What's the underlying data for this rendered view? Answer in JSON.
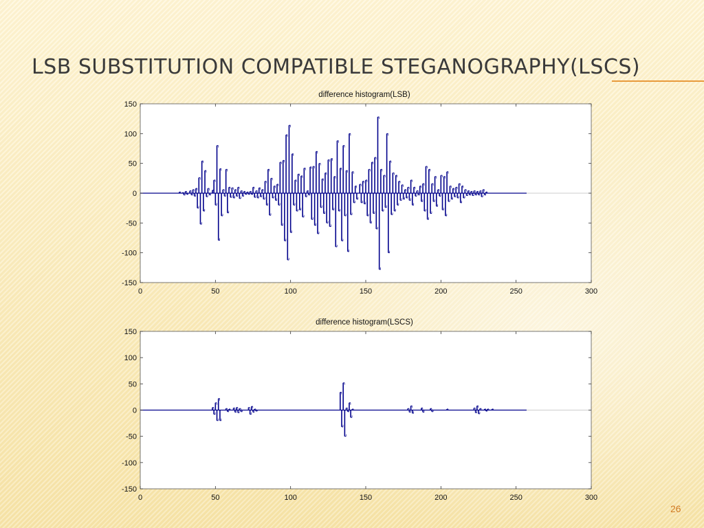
{
  "slide": {
    "title": "LSB substitution compatible steganography(LSCS)",
    "page_number": "26",
    "colors": {
      "accent_line": "#e89a3c",
      "bar_color": "#00008b",
      "page_number_color": "#d07a22"
    }
  },
  "chart_data": [
    {
      "type": "bar",
      "title": "difference histogram(LSB)",
      "xlim": [
        0,
        300
      ],
      "ylim": [
        -150,
        150
      ],
      "xticks": [
        0,
        50,
        100,
        150,
        200,
        250,
        300
      ],
      "yticks": [
        150,
        100,
        50,
        0,
        -50,
        -100,
        -150
      ],
      "grid": false,
      "series": [
        {
          "values": [
            [
              26,
              2
            ],
            [
              28,
              1
            ],
            [
              29,
              -3
            ],
            [
              30,
              3
            ],
            [
              31,
              -2
            ],
            [
              33,
              4
            ],
            [
              34,
              -3
            ],
            [
              35,
              6
            ],
            [
              36,
              -5
            ],
            [
              37,
              8
            ],
            [
              38,
              -25
            ],
            [
              39,
              26
            ],
            [
              40,
              -52
            ],
            [
              41,
              54
            ],
            [
              42,
              -30
            ],
            [
              43,
              38
            ],
            [
              44,
              -6
            ],
            [
              45,
              8
            ],
            [
              46,
              -3
            ],
            [
              48,
              5
            ],
            [
              49,
              22
            ],
            [
              50,
              -20
            ],
            [
              51,
              80
            ],
            [
              52,
              -79
            ],
            [
              53,
              41
            ],
            [
              54,
              -38
            ],
            [
              55,
              6
            ],
            [
              56,
              -5
            ],
            [
              57,
              40
            ],
            [
              58,
              -33
            ],
            [
              59,
              10
            ],
            [
              60,
              -7
            ],
            [
              61,
              9
            ],
            [
              62,
              -8
            ],
            [
              63,
              6
            ],
            [
              64,
              -5
            ],
            [
              65,
              10
            ],
            [
              66,
              -9
            ],
            [
              67,
              4
            ],
            [
              68,
              -5
            ],
            [
              69,
              3
            ],
            [
              70,
              -2
            ],
            [
              71,
              2
            ],
            [
              72,
              -2
            ],
            [
              73,
              3
            ],
            [
              74,
              -2
            ],
            [
              75,
              10
            ],
            [
              76,
              -7
            ],
            [
              77,
              4
            ],
            [
              78,
              -8
            ],
            [
              79,
              9
            ],
            [
              80,
              -6
            ],
            [
              81,
              6
            ],
            [
              82,
              -10
            ],
            [
              83,
              20
            ],
            [
              84,
              -20
            ],
            [
              85,
              40
            ],
            [
              86,
              -37
            ],
            [
              87,
              25
            ],
            [
              88,
              -8
            ],
            [
              89,
              12
            ],
            [
              90,
              -12
            ],
            [
              91,
              15
            ],
            [
              92,
              -20
            ],
            [
              93,
              52
            ],
            [
              94,
              -54
            ],
            [
              95,
              55
            ],
            [
              96,
              -80
            ],
            [
              97,
              98
            ],
            [
              98,
              -112
            ],
            [
              99,
              114
            ],
            [
              100,
              -66
            ],
            [
              101,
              66
            ],
            [
              102,
              -20
            ],
            [
              103,
              22
            ],
            [
              104,
              -30
            ],
            [
              105,
              32
            ],
            [
              106,
              -28
            ],
            [
              107,
              29
            ],
            [
              108,
              -40
            ],
            [
              109,
              42
            ],
            [
              110,
              -6
            ],
            [
              111,
              4
            ],
            [
              112,
              -3
            ],
            [
              113,
              44
            ],
            [
              114,
              -44
            ],
            [
              115,
              45
            ],
            [
              116,
              -54
            ],
            [
              117,
              70
            ],
            [
              118,
              -68
            ],
            [
              119,
              50
            ],
            [
              120,
              -24
            ],
            [
              121,
              24
            ],
            [
              122,
              -34
            ],
            [
              123,
              34
            ],
            [
              124,
              -50
            ],
            [
              125,
              56
            ],
            [
              126,
              -56
            ],
            [
              127,
              58
            ],
            [
              128,
              -28
            ],
            [
              129,
              28
            ],
            [
              130,
              -90
            ],
            [
              131,
              88
            ],
            [
              132,
              -30
            ],
            [
              133,
              42
            ],
            [
              134,
              -80
            ],
            [
              135,
              80
            ],
            [
              136,
              -38
            ],
            [
              137,
              38
            ],
            [
              138,
              -98
            ],
            [
              139,
              100
            ],
            [
              140,
              -36
            ],
            [
              141,
              36
            ],
            [
              142,
              -16
            ],
            [
              143,
              12
            ],
            [
              144,
              -10
            ],
            [
              146,
              15
            ],
            [
              147,
              -16
            ],
            [
              148,
              20
            ],
            [
              149,
              -18
            ],
            [
              150,
              22
            ],
            [
              151,
              -38
            ],
            [
              152,
              40
            ],
            [
              153,
              -50
            ],
            [
              154,
              52
            ],
            [
              155,
              -34
            ],
            [
              156,
              60
            ],
            [
              157,
              -60
            ],
            [
              158,
              128
            ],
            [
              159,
              -128
            ],
            [
              160,
              40
            ],
            [
              161,
              -30
            ],
            [
              162,
              30
            ],
            [
              163,
              -24
            ],
            [
              164,
              100
            ],
            [
              165,
              -100
            ],
            [
              166,
              54
            ],
            [
              167,
              -36
            ],
            [
              168,
              34
            ],
            [
              169,
              -30
            ],
            [
              170,
              30
            ],
            [
              171,
              -20
            ],
            [
              172,
              20
            ],
            [
              173,
              -12
            ],
            [
              174,
              14
            ],
            [
              175,
              -10
            ],
            [
              176,
              6
            ],
            [
              177,
              -8
            ],
            [
              178,
              10
            ],
            [
              179,
              -12
            ],
            [
              180,
              22
            ],
            [
              181,
              -20
            ],
            [
              182,
              10
            ],
            [
              183,
              -5
            ],
            [
              184,
              4
            ],
            [
              185,
              -3
            ],
            [
              186,
              12
            ],
            [
              187,
              -14
            ],
            [
              188,
              16
            ],
            [
              189,
              -30
            ],
            [
              190,
              45
            ],
            [
              191,
              -44
            ],
            [
              192,
              40
            ],
            [
              193,
              -34
            ],
            [
              194,
              16
            ],
            [
              195,
              -14
            ],
            [
              196,
              28
            ],
            [
              197,
              -22
            ],
            [
              198,
              6
            ],
            [
              199,
              -5
            ],
            [
              200,
              30
            ],
            [
              201,
              -28
            ],
            [
              202,
              28
            ],
            [
              203,
              -38
            ],
            [
              204,
              36
            ],
            [
              205,
              -14
            ],
            [
              206,
              12
            ],
            [
              207,
              -10
            ],
            [
              208,
              8
            ],
            [
              209,
              -6
            ],
            [
              210,
              10
            ],
            [
              211,
              -8
            ],
            [
              212,
              16
            ],
            [
              213,
              -16
            ],
            [
              214,
              12
            ],
            [
              215,
              -8
            ],
            [
              216,
              6
            ],
            [
              217,
              -4
            ],
            [
              218,
              4
            ],
            [
              219,
              -3
            ],
            [
              220,
              3
            ],
            [
              221,
              -4
            ],
            [
              222,
              4
            ],
            [
              223,
              -3
            ],
            [
              224,
              3
            ],
            [
              225,
              -3
            ],
            [
              226,
              4
            ],
            [
              227,
              -6
            ],
            [
              228,
              6
            ],
            [
              229,
              -3
            ],
            [
              230,
              2
            ]
          ]
        }
      ]
    },
    {
      "type": "bar",
      "title": "difference histogram(LSCS)",
      "xlim": [
        0,
        300
      ],
      "ylim": [
        -150,
        150
      ],
      "xticks": [
        0,
        50,
        100,
        150,
        200,
        250,
        300
      ],
      "yticks": [
        150,
        100,
        50,
        0,
        -50,
        -100,
        -150
      ],
      "grid": false,
      "series": [
        {
          "values": [
            [
              48,
              5
            ],
            [
              49,
              -8
            ],
            [
              50,
              14
            ],
            [
              51,
              -20
            ],
            [
              52,
              22
            ],
            [
              53,
              -20
            ],
            [
              57,
              3
            ],
            [
              58,
              -3
            ],
            [
              59,
              2
            ],
            [
              62,
              4
            ],
            [
              63,
              -4
            ],
            [
              64,
              5
            ],
            [
              65,
              -5
            ],
            [
              66,
              3
            ],
            [
              67,
              -3
            ],
            [
              72,
              5
            ],
            [
              73,
              -8
            ],
            [
              74,
              7
            ],
            [
              75,
              -4
            ],
            [
              76,
              2
            ],
            [
              77,
              -2
            ],
            [
              133,
              34
            ],
            [
              134,
              -32
            ],
            [
              135,
              52
            ],
            [
              136,
              -50
            ],
            [
              137,
              4
            ],
            [
              138,
              -3
            ],
            [
              139,
              14
            ],
            [
              140,
              -14
            ],
            [
              141,
              2
            ],
            [
              178,
              3
            ],
            [
              179,
              -4
            ],
            [
              180,
              8
            ],
            [
              181,
              -6
            ],
            [
              187,
              4
            ],
            [
              188,
              -4
            ],
            [
              193,
              3
            ],
            [
              194,
              -3
            ],
            [
              204,
              2
            ],
            [
              222,
              4
            ],
            [
              223,
              -5
            ],
            [
              224,
              8
            ],
            [
              225,
              -7
            ],
            [
              226,
              3
            ],
            [
              229,
              2
            ],
            [
              230,
              -2
            ],
            [
              231,
              2
            ],
            [
              234,
              2
            ]
          ]
        }
      ]
    }
  ]
}
